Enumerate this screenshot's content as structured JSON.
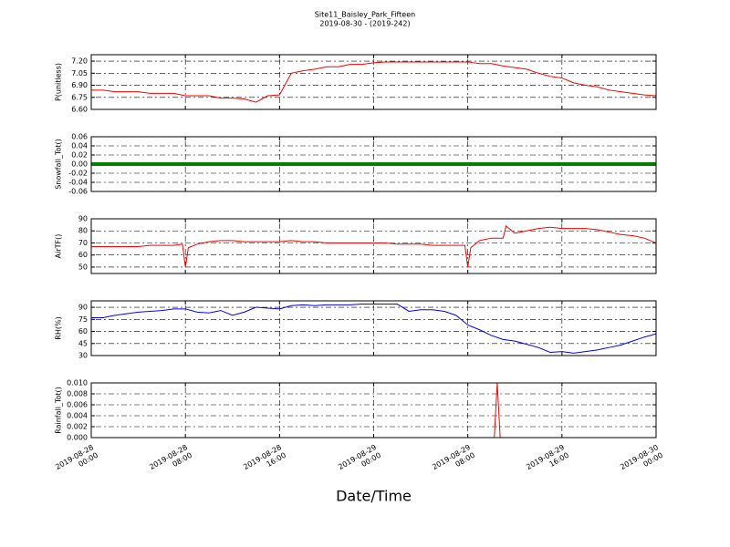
{
  "title": "Site11_Baisley_Park_Fifteen",
  "subtitle": "2019-08-30 - (2019-242)",
  "chart_data": [
    {
      "type": "line",
      "ylabel": "P(unitless)",
      "xlim": [
        "2019-08-28 00:00",
        "2019-08-30 00:00"
      ],
      "xticks": [
        "2019-08-28 00:00",
        "2019-08-28 08:00",
        "2019-08-28 16:00",
        "2019-08-29 00:00",
        "2019-08-29 08:00",
        "2019-08-29 16:00",
        "2019-08-30 00:00"
      ],
      "ylim": [
        6.6,
        7.28
      ],
      "yticks": [
        {
          "value": 7.2,
          "label": "7.20"
        },
        {
          "value": 7.05,
          "label": "7.05"
        },
        {
          "value": 6.9,
          "label": "6.90"
        },
        {
          "value": 6.75,
          "label": "6.75"
        },
        {
          "value": 6.6,
          "label": "6.60"
        }
      ],
      "grid": true,
      "x": [
        "2019-08-28 00:00",
        "2019-08-28 01:00",
        "2019-08-28 02:00",
        "2019-08-28 03:00",
        "2019-08-28 04:00",
        "2019-08-28 05:00",
        "2019-08-28 06:00",
        "2019-08-28 07:00",
        "2019-08-28 08:00",
        "2019-08-28 09:00",
        "2019-08-28 10:00",
        "2019-08-28 11:00",
        "2019-08-28 12:00",
        "2019-08-28 13:00",
        "2019-08-28 14:00",
        "2019-08-28 15:00",
        "2019-08-28 16:00",
        "2019-08-28 17:00",
        "2019-08-28 18:00",
        "2019-08-28 19:00",
        "2019-08-28 20:00",
        "2019-08-28 21:00",
        "2019-08-28 22:00",
        "2019-08-28 23:00",
        "2019-08-29 00:00",
        "2019-08-29 01:00",
        "2019-08-29 02:00",
        "2019-08-29 03:00",
        "2019-08-29 04:00",
        "2019-08-29 05:00",
        "2019-08-29 06:00",
        "2019-08-29 07:00",
        "2019-08-29 08:00",
        "2019-08-29 09:00",
        "2019-08-29 10:00",
        "2019-08-29 11:00",
        "2019-08-29 12:00",
        "2019-08-29 13:00",
        "2019-08-29 14:00",
        "2019-08-29 15:00",
        "2019-08-29 16:00",
        "2019-08-29 17:00",
        "2019-08-29 18:00",
        "2019-08-29 19:00",
        "2019-08-29 20:00",
        "2019-08-29 21:00",
        "2019-08-29 22:00",
        "2019-08-29 23:00",
        "2019-08-30 00:00"
      ],
      "series": [
        {
          "color": "#ff0000",
          "values": [
            6.84,
            6.84,
            6.82,
            6.82,
            6.82,
            6.8,
            6.8,
            6.8,
            6.77,
            6.77,
            6.77,
            6.74,
            6.74,
            6.73,
            6.69,
            6.77,
            6.78,
            7.05,
            7.08,
            7.1,
            7.13,
            7.13,
            7.16,
            7.16,
            7.18,
            7.19,
            7.19,
            7.19,
            7.19,
            7.19,
            7.19,
            7.19,
            7.19,
            7.17,
            7.17,
            7.14,
            7.12,
            7.1,
            7.05,
            7.01,
            6.99,
            6.93,
            6.9,
            6.88,
            6.84,
            6.82,
            6.8,
            6.78,
            6.77
          ]
        }
      ]
    },
    {
      "type": "line",
      "ylabel": "Snowfall_Tot()",
      "xlim": [
        "2019-08-28 00:00",
        "2019-08-30 00:00"
      ],
      "xticks": [
        "2019-08-28 00:00",
        "2019-08-28 08:00",
        "2019-08-28 16:00",
        "2019-08-29 00:00",
        "2019-08-29 08:00",
        "2019-08-29 16:00",
        "2019-08-30 00:00"
      ],
      "ylim": [
        -0.06,
        0.06
      ],
      "yticks": [
        0.06,
        0.04,
        0.02,
        {
          "value": 0,
          "label": "0.00"
        },
        -0.02,
        -0.04,
        -0.06
      ],
      "grid": true,
      "x": [
        "2019-08-28 00:00",
        "2019-08-28 01:00",
        "2019-08-28 02:00",
        "2019-08-28 03:00",
        "2019-08-28 04:00",
        "2019-08-28 05:00",
        "2019-08-28 06:00",
        "2019-08-28 07:00",
        "2019-08-28 08:00",
        "2019-08-28 09:00",
        "2019-08-28 10:00",
        "2019-08-28 11:00",
        "2019-08-28 12:00",
        "2019-08-28 13:00",
        "2019-08-28 14:00",
        "2019-08-28 15:00",
        "2019-08-28 16:00",
        "2019-08-28 17:00",
        "2019-08-28 18:00",
        "2019-08-28 19:00",
        "2019-08-28 20:00",
        "2019-08-28 21:00",
        "2019-08-28 22:00",
        "2019-08-28 23:00",
        "2019-08-29 00:00",
        "2019-08-29 01:00",
        "2019-08-29 02:00",
        "2019-08-29 03:00",
        "2019-08-29 04:00",
        "2019-08-29 05:00",
        "2019-08-29 06:00",
        "2019-08-29 07:00",
        "2019-08-29 08:00",
        "2019-08-29 09:00",
        "2019-08-29 10:00",
        "2019-08-29 11:00",
        "2019-08-29 12:00",
        "2019-08-29 13:00",
        "2019-08-29 14:00",
        "2019-08-29 15:00",
        "2019-08-29 16:00",
        "2019-08-29 17:00",
        "2019-08-29 18:00",
        "2019-08-29 19:00",
        "2019-08-29 20:00",
        "2019-08-29 21:00",
        "2019-08-29 22:00",
        "2019-08-29 23:00",
        "2019-08-30 00:00"
      ],
      "series": [
        {
          "color": "#008000",
          "values": [
            0,
            0,
            0,
            0,
            0,
            0,
            0,
            0,
            0,
            0,
            0,
            0,
            0,
            0,
            0,
            0,
            0,
            0,
            0,
            0,
            0,
            0,
            0,
            0,
            0,
            0,
            0,
            0,
            0,
            0,
            0,
            0,
            0,
            0,
            0,
            0,
            0,
            0,
            0,
            0,
            0,
            0,
            0,
            0,
            0,
            0,
            0,
            0,
            0
          ]
        }
      ]
    },
    {
      "type": "line",
      "ylabel": "AirTF()",
      "xlim": [
        "2019-08-28 00:00",
        "2019-08-30 00:00"
      ],
      "xticks": [
        "2019-08-28 00:00",
        "2019-08-28 08:00",
        "2019-08-28 16:00",
        "2019-08-29 00:00",
        "2019-08-29 08:00",
        "2019-08-29 16:00",
        "2019-08-30 00:00"
      ],
      "ylim": [
        44.7,
        90
      ],
      "yticks": [
        90,
        80,
        70,
        60,
        50
      ],
      "grid": true,
      "x": [
        "2019-08-28 00:00",
        "2019-08-28 01:00",
        "2019-08-28 02:00",
        "2019-08-28 03:00",
        "2019-08-28 04:00",
        "2019-08-28 05:00",
        "2019-08-28 06:00",
        "2019-08-28 07:00",
        "2019-08-28 07:45",
        "2019-08-28 08:00",
        "2019-08-28 08:15",
        "2019-08-28 09:00",
        "2019-08-28 10:00",
        "2019-08-28 11:00",
        "2019-08-28 12:00",
        "2019-08-28 13:00",
        "2019-08-28 14:00",
        "2019-08-28 15:00",
        "2019-08-28 16:00",
        "2019-08-28 17:00",
        "2019-08-28 18:00",
        "2019-08-28 19:00",
        "2019-08-28 20:00",
        "2019-08-28 21:00",
        "2019-08-28 22:00",
        "2019-08-28 23:00",
        "2019-08-29 00:00",
        "2019-08-29 01:00",
        "2019-08-29 02:00",
        "2019-08-29 03:00",
        "2019-08-29 04:00",
        "2019-08-29 05:00",
        "2019-08-29 06:00",
        "2019-08-29 07:00",
        "2019-08-29 07:45",
        "2019-08-29 08:00",
        "2019-08-29 08:15",
        "2019-08-29 09:00",
        "2019-08-29 10:00",
        "2019-08-29 11:00",
        "2019-08-29 11:15",
        "2019-08-29 12:00",
        "2019-08-29 13:00",
        "2019-08-29 14:00",
        "2019-08-29 15:00",
        "2019-08-29 16:00",
        "2019-08-29 17:00",
        "2019-08-29 18:00",
        "2019-08-29 19:00",
        "2019-08-29 20:00",
        "2019-08-29 21:00",
        "2019-08-29 22:00",
        "2019-08-29 23:00",
        "2019-08-30 00:00"
      ],
      "series": [
        {
          "color": "#ff0000",
          "values": [
            67,
            67,
            67,
            67,
            67,
            68,
            68,
            68,
            69,
            50,
            66,
            69,
            71,
            72,
            72,
            71,
            71,
            71,
            71,
            72,
            71,
            71,
            70,
            70,
            70,
            70,
            70,
            70,
            69,
            69,
            69,
            68,
            68,
            68,
            68,
            50,
            66,
            72,
            74,
            74,
            84,
            78,
            80,
            82,
            83,
            82,
            82,
            82,
            81,
            79,
            77,
            76,
            74,
            70
          ]
        }
      ]
    },
    {
      "type": "line",
      "ylabel": "RH(%)",
      "xlim": [
        "2019-08-28 00:00",
        "2019-08-30 00:00"
      ],
      "xticks": [
        "2019-08-28 00:00",
        "2019-08-28 08:00",
        "2019-08-28 16:00",
        "2019-08-29 00:00",
        "2019-08-29 08:00",
        "2019-08-29 16:00",
        "2019-08-30 00:00"
      ],
      "ylim": [
        30,
        98
      ],
      "yticks": [
        90,
        75,
        60,
        45,
        30
      ],
      "grid": true,
      "x": [
        "2019-08-28 00:00",
        "2019-08-28 01:00",
        "2019-08-28 02:00",
        "2019-08-28 03:00",
        "2019-08-28 04:00",
        "2019-08-28 05:00",
        "2019-08-28 06:00",
        "2019-08-28 07:00",
        "2019-08-28 08:00",
        "2019-08-28 09:00",
        "2019-08-28 10:00",
        "2019-08-28 11:00",
        "2019-08-28 12:00",
        "2019-08-28 13:00",
        "2019-08-28 14:00",
        "2019-08-28 15:00",
        "2019-08-28 16:00",
        "2019-08-28 17:00",
        "2019-08-28 18:00",
        "2019-08-28 19:00",
        "2019-08-28 20:00",
        "2019-08-28 21:00",
        "2019-08-28 22:00",
        "2019-08-28 23:00",
        "2019-08-29 00:00",
        "2019-08-29 01:00",
        "2019-08-29 02:00",
        "2019-08-29 03:00",
        "2019-08-29 04:00",
        "2019-08-29 05:00",
        "2019-08-29 06:00",
        "2019-08-29 07:00",
        "2019-08-29 08:00",
        "2019-08-29 09:00",
        "2019-08-29 10:00",
        "2019-08-29 11:00",
        "2019-08-29 12:00",
        "2019-08-29 13:00",
        "2019-08-29 14:00",
        "2019-08-29 15:00",
        "2019-08-29 16:00",
        "2019-08-29 17:00",
        "2019-08-29 18:00",
        "2019-08-29 19:00",
        "2019-08-29 20:00",
        "2019-08-29 21:00",
        "2019-08-29 22:00",
        "2019-08-29 23:00",
        "2019-08-30 00:00"
      ],
      "series": [
        {
          "color": "#0000ff",
          "values": [
            77,
            77,
            80,
            82,
            84,
            85,
            86,
            88,
            88,
            84,
            83,
            86,
            80,
            84,
            90,
            89,
            88,
            92,
            93,
            92,
            93,
            93,
            93,
            94,
            94,
            94,
            94,
            85,
            87,
            87,
            85,
            80,
            68,
            62,
            55,
            50,
            48,
            44,
            40,
            34,
            35,
            33,
            35,
            37,
            40,
            43,
            48,
            53,
            57
          ]
        }
      ]
    },
    {
      "type": "line",
      "ylabel": "Rainfall_Tot()",
      "xlabel": "Date/Time",
      "xlim": [
        "2019-08-28 00:00",
        "2019-08-30 00:00"
      ],
      "xticks": [
        {
          "value": "2019-08-28 00:00",
          "label": "2019-08-28\n00:00"
        },
        {
          "value": "2019-08-28 08:00",
          "label": "2019-08-28\n08:00"
        },
        {
          "value": "2019-08-28 16:00",
          "label": "2019-08-28\n16:00"
        },
        {
          "value": "2019-08-29 00:00",
          "label": "2019-08-29\n00:00"
        },
        {
          "value": "2019-08-29 08:00",
          "label": "2019-08-29\n08:00"
        },
        {
          "value": "2019-08-29 16:00",
          "label": "2019-08-29\n16:00"
        },
        {
          "value": "2019-08-30 00:00",
          "label": "2019-08-30\n00:00"
        }
      ],
      "ylim": [
        0,
        0.01
      ],
      "yticks": [
        {
          "value": 0.01,
          "label": "0.010"
        },
        {
          "value": 0.008,
          "label": "0.008"
        },
        {
          "value": 0.006,
          "label": "0.006"
        },
        {
          "value": 0.004,
          "label": "0.004"
        },
        {
          "value": 0.002,
          "label": "0.002"
        },
        {
          "value": 0,
          "label": "0.000"
        }
      ],
      "grid": true,
      "x": [
        "2019-08-28 00:00",
        "2019-08-29 10:15",
        "2019-08-29 10:30",
        "2019-08-29 10:45",
        "2019-08-30 00:00"
      ],
      "series": [
        {
          "color": "#ff0000",
          "values": [
            0,
            0,
            0.01,
            0,
            0
          ]
        }
      ]
    }
  ]
}
